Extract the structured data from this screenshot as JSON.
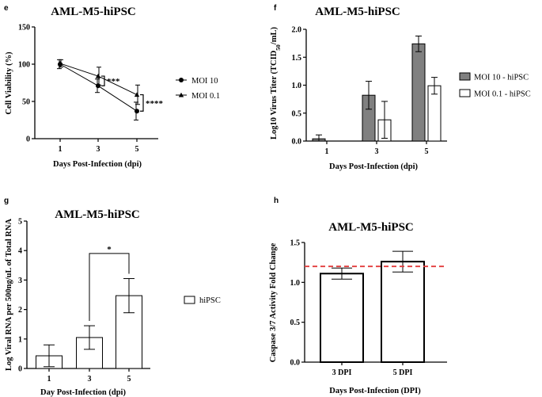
{
  "figure_label": "",
  "chart_data": [
    {
      "panel": "e",
      "type": "line",
      "title": "AML-M5-hiPSC",
      "xlabel": "Days Post-Infection (dpi)",
      "ylabel": "Cell Viability (%)",
      "ylim": [
        0,
        150
      ],
      "yticks": [
        "0",
        "50",
        "100",
        "150"
      ],
      "categories": [
        "1",
        "3",
        "5"
      ],
      "legend": "right",
      "series": [
        {
          "name": "MOI 10",
          "marker": "circle",
          "values": [
            100,
            71,
            37
          ],
          "errors": [
            6,
            9,
            12
          ]
        },
        {
          "name": "MOI 0.1",
          "marker": "triangle",
          "values": [
            101,
            84,
            59
          ],
          "errors": [
            5,
            12,
            13
          ]
        }
      ],
      "significance": [
        {
          "label": "***",
          "category": "3"
        },
        {
          "label": "****",
          "category": "5"
        }
      ]
    },
    {
      "panel": "f",
      "type": "bar",
      "title": "AML-M5-hiPSC",
      "xlabel": "Days Post-Infection (dpi)",
      "ylabel_main": "Log10 Virus Titer (TCID",
      "ylabel_sub": "50",
      "ylabel_end": "/mL)",
      "ylim": [
        0,
        2.0
      ],
      "yticks": [
        "0.0",
        "0.5",
        "1.0",
        "1.5",
        "2.0"
      ],
      "categories": [
        "1",
        "3",
        "5"
      ],
      "legend": "right",
      "series": [
        {
          "name": "MOI 10 - hiPSC",
          "color": "#808080",
          "values": [
            0.04,
            0.82,
            1.74
          ],
          "errors": [
            0.07,
            0.25,
            0.14
          ]
        },
        {
          "name": "MOI 0.1 - hiPSC",
          "color": "#ffffff",
          "values": [
            0.0,
            0.38,
            0.99
          ],
          "errors": [
            0.0,
            0.33,
            0.15
          ]
        }
      ]
    },
    {
      "panel": "g",
      "type": "bar",
      "title": "AML-M5-hiPSC",
      "xlabel": "Day Post-Infection (dpi)",
      "ylabel": "Log Viral RNA per 500ng/uL of Total RNA",
      "ylim": [
        0,
        5
      ],
      "yticks": [
        "0",
        "1",
        "2",
        "3",
        "4",
        "5"
      ],
      "categories": [
        "1",
        "3",
        "5"
      ],
      "legend": "right",
      "series": [
        {
          "name": "hiPSC",
          "color": "#ffffff",
          "values": [
            0.43,
            1.05,
            2.47
          ],
          "errors": [
            0.37,
            0.4,
            0.58
          ]
        }
      ],
      "significance": [
        {
          "label": "*",
          "from": "3",
          "to": "5",
          "y": 3.9
        }
      ]
    },
    {
      "panel": "h",
      "type": "bar",
      "title": "AML-M5-hiPSC",
      "xlabel": "Days Post-Infection (DPI)",
      "ylabel": "Caspase 3/7 Activity Fold  Change",
      "ylim": [
        0,
        1.5
      ],
      "yticks": [
        "0.0",
        "0.5",
        "1.0",
        "1.5"
      ],
      "categories": [
        "3 DPI",
        "5 DPI"
      ],
      "series": [
        {
          "color": "#ffffff",
          "values": [
            1.11,
            1.26
          ],
          "errors": [
            0.07,
            0.13
          ]
        }
      ],
      "reference_line": {
        "value": 1.2,
        "color": "#e23c3c",
        "style": "dashed"
      }
    }
  ]
}
